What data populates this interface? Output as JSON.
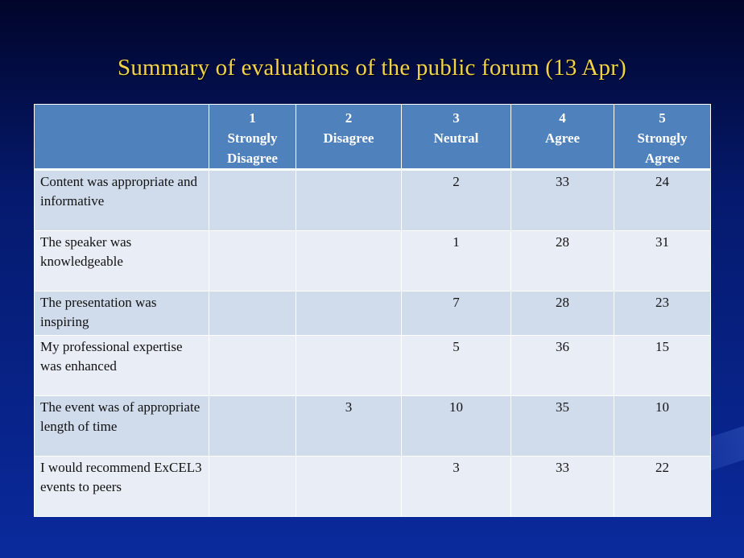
{
  "title": "Summary of evaluations of the public forum (13 Apr)",
  "columns": [
    {
      "num": "1",
      "line1": "Strongly",
      "line2": "Disagree"
    },
    {
      "num": "2",
      "line1": "Disagree",
      "line2": ""
    },
    {
      "num": "3",
      "line1": "Neutral",
      "line2": ""
    },
    {
      "num": "4",
      "line1": "Agree",
      "line2": ""
    },
    {
      "num": "5",
      "line1": "Strongly",
      "line2": "Agree"
    }
  ],
  "rows": [
    {
      "label": "Content was appropriate and informative",
      "values": [
        "",
        "",
        "2",
        "33",
        "24"
      ]
    },
    {
      "label": "The speaker was knowledgeable",
      "values": [
        "",
        "",
        "1",
        "28",
        "31"
      ]
    },
    {
      "label": "The presentation was inspiring",
      "values": [
        "",
        "",
        "7",
        "28",
        "23"
      ]
    },
    {
      "label": "My professional expertise was enhanced",
      "values": [
        "",
        "",
        "5",
        "36",
        "15"
      ]
    },
    {
      "label": "The event was of appropriate length of time",
      "values": [
        "",
        "3",
        "10",
        "35",
        "10"
      ]
    },
    {
      "label": "I would recommend ExCEL3 events to peers",
      "values": [
        "",
        "",
        "3",
        "33",
        "22"
      ]
    }
  ],
  "colors": {
    "title": "#f2d34a",
    "header_bg": "#4f81bd",
    "row_odd": "#d0dcec",
    "row_even": "#e9eef6"
  }
}
